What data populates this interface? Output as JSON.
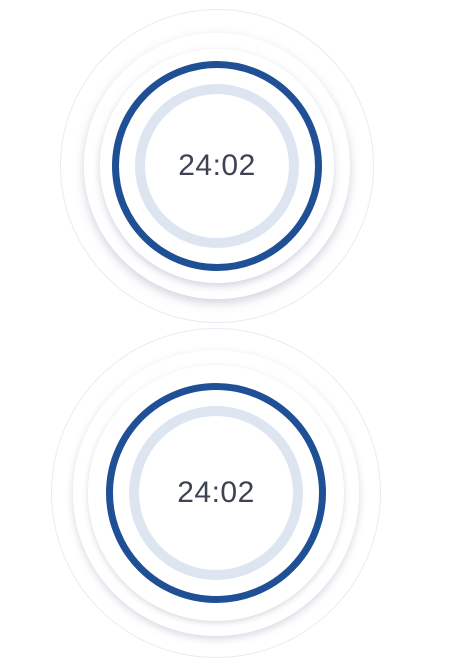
{
  "timers": [
    {
      "time_display": "24:02"
    },
    {
      "time_display": "24:02"
    }
  ],
  "colors": {
    "progress_ring": "#1f4f95",
    "track_ring": "#dde5f1",
    "readout_text": "#3d4353",
    "halo_border": "#e9ebf1",
    "background": "#ffffff"
  }
}
